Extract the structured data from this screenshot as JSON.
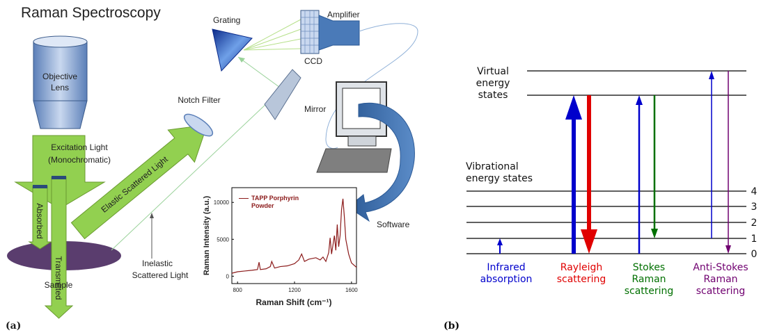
{
  "panel_a": {
    "label": "(a)",
    "title": "Raman Spectroscopy",
    "components": {
      "objective_lens": [
        "Objective",
        "Lens"
      ],
      "excitation_light": [
        "Excitation Light",
        "(Monochromatic)"
      ],
      "absorbed": "Absorbed",
      "transmitted": "Transmitted",
      "sample": "Sample",
      "elastic": "Elastic Scattered Light",
      "inelastic": [
        "Inelastic",
        "Scattered Light"
      ],
      "notch_filter": "Notch Filter",
      "mirror": "Mirror",
      "grating": "Grating",
      "ccd": "CCD",
      "amplifier": "Amplifier",
      "software": "Software"
    },
    "inset_chart": {
      "type": "line",
      "x_label": "Raman Shift (cm⁻¹)",
      "y_label": "Raman Intensity (a.u.)",
      "xlim": [
        760,
        1635
      ],
      "ylim": [
        -1000,
        12000
      ],
      "xticks": [
        800,
        1200,
        1600
      ],
      "yticks": [
        0,
        5000,
        10000
      ],
      "x": [
        760,
        800,
        850,
        900,
        940,
        951,
        960,
        1000,
        1030,
        1040,
        1060,
        1100,
        1150,
        1200,
        1230,
        1250,
        1270,
        1300,
        1350,
        1380,
        1400,
        1420,
        1440,
        1450,
        1460,
        1480,
        1490,
        1500,
        1510,
        1520,
        1530,
        1540,
        1550,
        1560,
        1580,
        1600,
        1635
      ],
      "series": [
        {
          "name": "TAPP Porphyrin Powder",
          "color": "#8b1a1a",
          "values": [
            400,
            600,
            700,
            800,
            900,
            1900,
            900,
            1000,
            1300,
            2000,
            1100,
            1300,
            1400,
            1700,
            2200,
            3000,
            2000,
            2300,
            2500,
            2200,
            2600,
            2000,
            3200,
            5200,
            3000,
            5500,
            3500,
            7000,
            4000,
            5500,
            9000,
            10500,
            8000,
            5000,
            3000,
            1800,
            1200
          ]
        }
      ]
    }
  },
  "panel_b": {
    "label": "(b)",
    "virtual_states": [
      "Virtual",
      "energy",
      "states"
    ],
    "vibrational_states": [
      "Vibrational",
      "energy states"
    ],
    "levels": [
      "0",
      "1",
      "2",
      "3",
      "4"
    ],
    "processes": [
      {
        "lines": [
          "Infrared",
          "absorption"
        ],
        "color": "#0000cc"
      },
      {
        "lines": [
          "Rayleigh",
          "scattering"
        ],
        "color": "#e00000"
      },
      {
        "lines": [
          "Stokes",
          "Raman",
          "scattering"
        ],
        "color": "#007000"
      },
      {
        "lines": [
          "Anti-Stokes",
          "Raman",
          "scattering"
        ],
        "color": "#700070"
      }
    ]
  }
}
